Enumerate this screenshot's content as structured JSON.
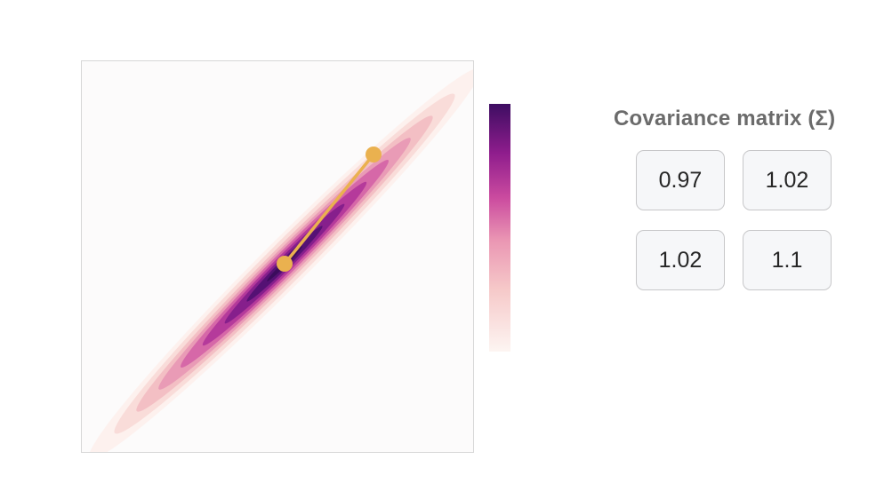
{
  "matrix": {
    "title": "Covariance matrix (Σ)",
    "cells": [
      [
        "0.97",
        "1.02"
      ],
      [
        "1.02",
        "1.1"
      ]
    ]
  },
  "colors": {
    "colormap": [
      "#fdf5f2",
      "#f6c9c9",
      "#ea96b3",
      "#cb4b9f",
      "#8f1d8d",
      "#3e0d62"
    ],
    "vector": "#eab14f",
    "frame_border": "#d7d7d7"
  },
  "plot": {
    "vector_handle": "draggable endpoint",
    "vector_origin": "mean"
  }
}
